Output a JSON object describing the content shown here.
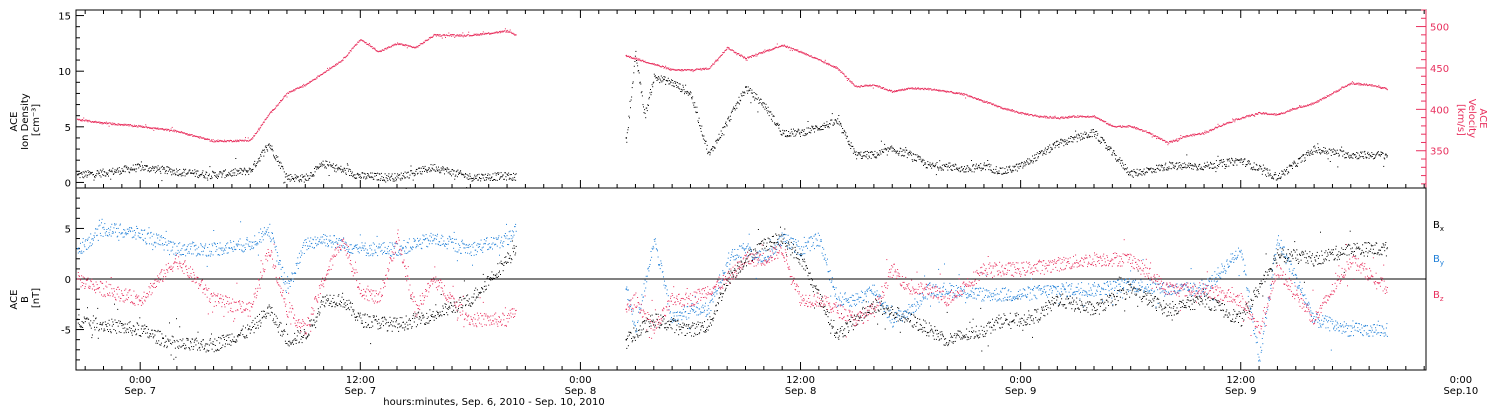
{
  "chart_data": [
    {
      "type": "scatter",
      "panel": "top",
      "ylabel": [
        "ACE",
        "Ion Density",
        "[cm⁻³]"
      ],
      "ylim": [
        -0.5,
        15.5
      ],
      "y_ticks": [
        "0",
        "5",
        "10",
        "15"
      ],
      "y_tick_values": [
        0,
        5,
        10,
        15
      ],
      "y2label": [
        "ACE",
        "Velocity",
        "[km/s]"
      ],
      "y2lim": [
        305,
        520
      ],
      "y2_ticks": [
        "350",
        "400",
        "450",
        "500"
      ],
      "y2_tick_values": [
        350,
        400,
        450,
        500
      ],
      "x_unit": "hours since Sep. 6, 2010 0:00",
      "xlim": [
        20.5,
        94.1
      ],
      "series": [
        {
          "name": "Ion Density",
          "color": "#000000",
          "axis": "left",
          "segments": [
            {
              "x": [
                20.6,
                22,
                24,
                26,
                28,
                30,
                31,
                32,
                33,
                34,
                36,
                38,
                40,
                42,
                44,
                44.5
              ],
              "y": [
                0.7,
                0.9,
                1.4,
                1.0,
                0.7,
                1.1,
                3.5,
                0.5,
                0.4,
                1.7,
                0.6,
                0.5,
                1.4,
                0.5,
                0.6,
                0.5
              ]
            },
            {
              "x": [
                50.5,
                51,
                51.5,
                52,
                53,
                54,
                55,
                56,
                57,
                58,
                59,
                60,
                61,
                62,
                63,
                64,
                65,
                66,
                67,
                68,
                69,
                70,
                71,
                72,
                73,
                74,
                76,
                78,
                80,
                82,
                84,
                86,
                88,
                90,
                92
              ],
              "y": [
                4.0,
                11.5,
                6.0,
                9.5,
                9.0,
                8.0,
                2.5,
                5.5,
                8.5,
                7.0,
                4.5,
                4.5,
                5.0,
                5.5,
                2.5,
                2.5,
                3.0,
                2.5,
                1.5,
                1.5,
                1.2,
                1.5,
                1.0,
                1.5,
                2.5,
                3.5,
                4.5,
                0.8,
                1.5,
                1.5,
                2.0,
                0.5,
                3.0,
                2.5,
                2.5
              ]
            }
          ]
        },
        {
          "name": "Velocity",
          "color": "#e8305e",
          "axis": "right",
          "segments": [
            {
              "x": [
                20.6,
                22,
                24,
                26,
                28,
                30,
                31,
                32,
                33,
                34,
                35,
                36,
                37,
                38,
                39,
                40,
                42,
                44,
                44.5
              ],
              "y": [
                388,
                384,
                380,
                374,
                362,
                363,
                394,
                420,
                430,
                445,
                460,
                485,
                470,
                480,
                475,
                490,
                490,
                495,
                490
              ]
            },
            {
              "x": [
                50.5,
                52,
                53,
                54,
                55,
                56,
                57,
                58,
                59,
                60,
                61,
                62,
                63,
                64,
                65,
                66,
                67,
                68,
                69,
                70,
                71,
                72,
                73,
                74,
                75,
                76,
                77,
                78,
                79,
                80,
                81,
                82,
                83,
                84,
                85,
                86,
                87,
                88,
                89,
                90,
                91,
                92
              ],
              "y": [
                465,
                455,
                448,
                448,
                450,
                475,
                462,
                470,
                478,
                470,
                460,
                450,
                428,
                430,
                422,
                426,
                425,
                422,
                418,
                410,
                402,
                396,
                392,
                390,
                392,
                392,
                380,
                380,
                372,
                360,
                368,
                372,
                382,
                390,
                396,
                394,
                402,
                408,
                420,
                432,
                430,
                425
              ]
            }
          ]
        }
      ]
    },
    {
      "type": "scatter",
      "panel": "bottom",
      "ylabel": [
        "ACE",
        "B",
        "[nT]"
      ],
      "ylim": [
        -9,
        9
      ],
      "y_ticks": [
        "-5",
        "0",
        "5"
      ],
      "y_tick_values": [
        -5,
        0,
        5
      ],
      "zero_line": true,
      "x_unit": "hours since Sep. 6, 2010 0:00",
      "xlim": [
        20.5,
        94.1
      ],
      "x_tick_values": [
        24,
        36,
        48,
        60,
        72,
        84,
        96
      ],
      "x_ticks_time": [
        "0:00",
        "12:00",
        "0:00",
        "12:00",
        "0:00",
        "12:00",
        "0:00"
      ],
      "x_ticks_date": [
        "Sep. 7",
        "Sep. 7",
        "Sep. 8",
        "Sep. 8",
        "Sep. 9",
        "Sep. 9",
        "Sep.10"
      ],
      "xlabel": "hours:minutes, Sep.  6, 2010 - Sep. 10, 2010",
      "series": [
        {
          "name": "Bx",
          "label_base": "B",
          "label_sub": "x",
          "color": "#000000",
          "segments": [
            {
              "x": [
                20.6,
                22,
                24,
                26,
                28,
                30,
                31,
                32,
                33,
                34,
                35,
                36,
                38,
                40,
                42,
                44,
                44.5
              ],
              "y": [
                -4,
                -4.5,
                -5,
                -6.5,
                -6.5,
                -5,
                -3,
                -6,
                -5.5,
                -2,
                -2,
                -4,
                -4.5,
                -3.5,
                -2,
                2,
                3
              ]
            },
            {
              "x": [
                50.5,
                52,
                54,
                55,
                56,
                57,
                58,
                59,
                60,
                62,
                63,
                64,
                66,
                68,
                70,
                71,
                72,
                73,
                74,
                76,
                78,
                80,
                82,
                84,
                86,
                88,
                90,
                92
              ],
              "y": [
                -6,
                -4,
                -5,
                -4.5,
                0,
                2,
                3.5,
                4,
                2,
                -5.5,
                -4,
                -2.5,
                -4,
                -6,
                -5,
                -4,
                -4,
                -3.5,
                -2,
                -3,
                -1,
                -3,
                -2,
                -4,
                2.5,
                2,
                3,
                3
              ]
            }
          ]
        },
        {
          "name": "By",
          "label_base": "B",
          "label_sub": "y",
          "color": "#1e7fd8",
          "segments": [
            {
              "x": [
                20.6,
                22,
                24,
                26,
                28,
                30,
                31,
                32,
                33,
                34,
                36,
                38,
                40,
                42,
                44,
                44.5
              ],
              "y": [
                3,
                5,
                4.5,
                3,
                3,
                3.5,
                5,
                -1,
                3.5,
                4,
                3,
                3,
                4,
                3,
                4,
                5
              ]
            },
            {
              "x": [
                50.5,
                51,
                52,
                53,
                54,
                55,
                56,
                57,
                58,
                59,
                60,
                61,
                62,
                63,
                64,
                65,
                66,
                67,
                68,
                70,
                72,
                74,
                76,
                78,
                80,
                82,
                84,
                85,
                86,
                88,
                90,
                92
              ],
              "y": [
                -1,
                -5,
                4,
                -4,
                -3,
                -3,
                2,
                3,
                2,
                4,
                3,
                4,
                -2,
                -2,
                -1,
                -4,
                -3,
                -1,
                -1,
                -1.5,
                -1.5,
                -1,
                -1,
                -0.5,
                -1,
                -1,
                3,
                -8,
                4,
                -4,
                -5,
                -5
              ]
            }
          ]
        },
        {
          "name": "Bz",
          "label_base": "B",
          "label_sub": "z",
          "color": "#e8305e",
          "segments": [
            {
              "x": [
                20.6,
                22,
                24,
                26,
                28,
                30,
                31,
                32,
                33,
                34,
                35,
                36,
                37,
                38,
                39,
                40,
                42,
                44,
                44.5
              ],
              "y": [
                0,
                -1,
                -2,
                2,
                -2,
                -3,
                3,
                -3,
                -5,
                0,
                4,
                -1,
                -2,
                4,
                -3,
                0,
                -4,
                -4,
                -3
              ]
            },
            {
              "x": [
                50.5,
                51,
                52,
                53,
                54,
                55,
                56,
                57,
                58,
                59,
                60,
                61,
                62,
                63,
                64,
                65,
                66,
                67,
                68,
                70,
                72,
                74,
                76,
                78,
                80,
                82,
                84,
                85,
                86,
                88,
                90,
                92
              ],
              "y": [
                -3,
                -2,
                -5,
                -2,
                -2,
                -1,
                0,
                2,
                2,
                3,
                -2,
                -2,
                -3,
                -4,
                -3,
                1,
                -1,
                -1,
                -2,
                1,
                1,
                1.5,
                2,
                2,
                -1,
                -1,
                -2,
                -5,
                1,
                -4,
                2,
                -1
              ]
            }
          ]
        }
      ]
    }
  ]
}
